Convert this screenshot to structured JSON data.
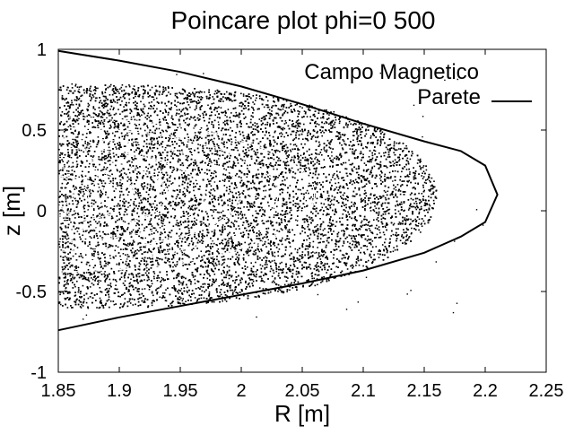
{
  "chart_data": {
    "type": "scatter",
    "title": "Poincare plot phi=0 500",
    "xlabel": "R [m]",
    "ylabel": "z [m]",
    "xlim": [
      1.85,
      2.25
    ],
    "ylim": [
      -1,
      1
    ],
    "xticks": [
      "1.85",
      "1.9",
      "1.95",
      "2",
      "2.05",
      "2.1",
      "2.15",
      "2.2",
      "2.25"
    ],
    "yticks": [
      "-1",
      "-0.5",
      "0",
      "0.5",
      "1"
    ],
    "grid": false,
    "legend_position": "top-right",
    "series": [
      {
        "name": "Campo Magnetico",
        "kind": "points",
        "color": "#000000",
        "region": {
          "center_z": 0.1,
          "outer_R_max": 2.16,
          "outer_z_top": 0.79,
          "outer_z_bottom": -0.6,
          "min_R": 1.85
        },
        "island_rings_R": [
          1.862,
          1.875,
          1.888,
          1.9,
          1.913,
          1.94,
          1.97,
          2.0,
          2.03,
          2.06
        ]
      },
      {
        "name": "Parete",
        "kind": "line",
        "color": "#000000",
        "points": [
          [
            1.85,
            0.99
          ],
          [
            1.9,
            0.93
          ],
          [
            1.95,
            0.86
          ],
          [
            2.0,
            0.77
          ],
          [
            2.05,
            0.66
          ],
          [
            2.1,
            0.54
          ],
          [
            2.15,
            0.43
          ],
          [
            2.18,
            0.37
          ],
          [
            2.2,
            0.28
          ],
          [
            2.21,
            0.1
          ],
          [
            2.2,
            -0.07
          ],
          [
            2.18,
            -0.16
          ],
          [
            2.15,
            -0.26
          ],
          [
            2.1,
            -0.37
          ],
          [
            2.05,
            -0.45
          ],
          [
            2.0,
            -0.52
          ],
          [
            1.95,
            -0.59
          ],
          [
            1.9,
            -0.66
          ],
          [
            1.85,
            -0.74
          ]
        ]
      }
    ]
  }
}
